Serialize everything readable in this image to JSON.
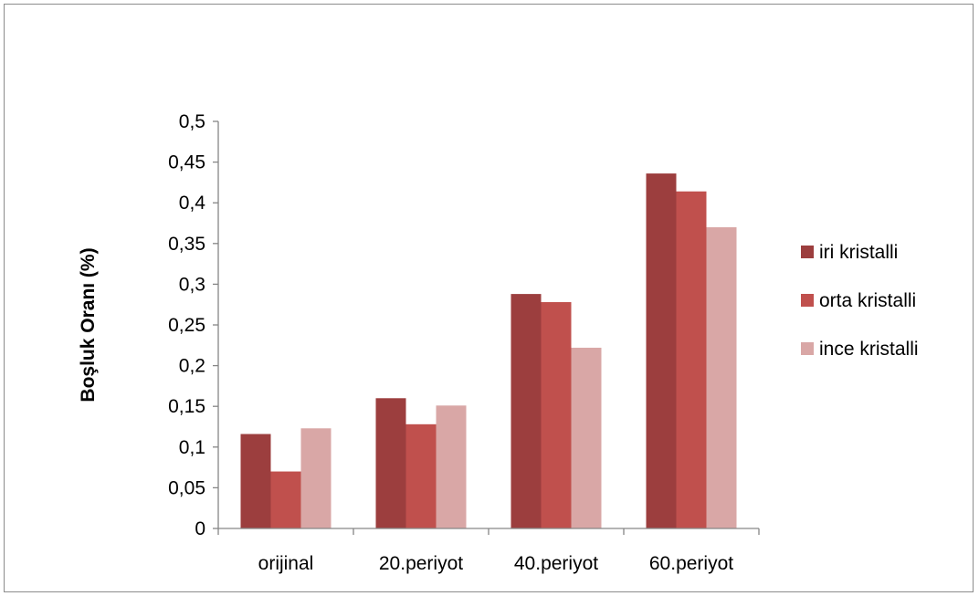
{
  "chart_data": {
    "type": "bar",
    "title": "",
    "xlabel": "",
    "ylabel": "Boşluk Oranı (%)",
    "categories": [
      "orijinal",
      "20.periyot",
      "40.periyot",
      "60.periyot"
    ],
    "series": [
      {
        "name": "iri kristalli",
        "color": "#9c3e3e",
        "values": [
          0.116,
          0.16,
          0.288,
          0.436
        ]
      },
      {
        "name": "orta kristalli",
        "color": "#c0504d",
        "values": [
          0.07,
          0.128,
          0.278,
          0.414
        ]
      },
      {
        "name": "ince kristalli",
        "color": "#d9a7a6",
        "values": [
          0.123,
          0.151,
          0.222,
          0.37
        ]
      }
    ],
    "ylim": [
      0,
      0.5
    ],
    "yticks": [
      "0",
      "0,05",
      "0,1",
      "0,15",
      "0,2",
      "0,25",
      "0,3",
      "0,35",
      "0,4",
      "0,45",
      "0,5"
    ],
    "grid": false,
    "legend_position": "right",
    "axis_color": "#868686"
  }
}
